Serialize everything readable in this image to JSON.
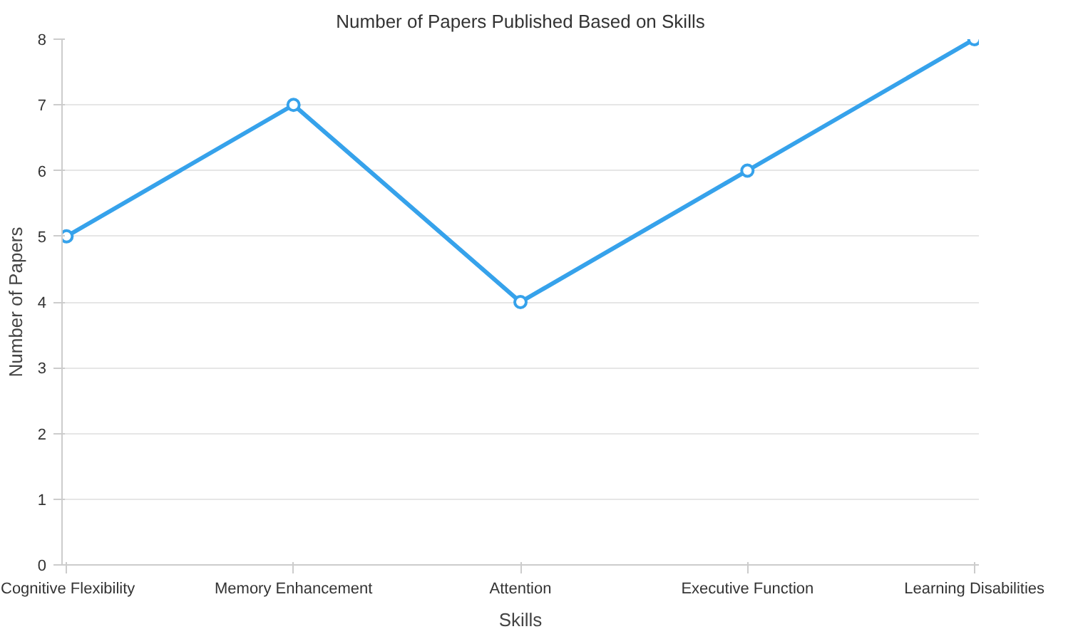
{
  "chart_data": {
    "type": "line",
    "title": "Number of Papers Published Based on Skills",
    "xlabel": "Skills",
    "ylabel": "Number of Papers",
    "categories": [
      "Cognitive Flexibility",
      "Memory Enhancement",
      "Attention",
      "Executive Function",
      "Learning Disabilities"
    ],
    "series": [
      {
        "color": "#36a2eb",
        "values": [
          5,
          7,
          4,
          6,
          8
        ]
      }
    ],
    "ylim": [
      0,
      8
    ],
    "yticks": [
      0,
      1,
      2,
      3,
      4,
      5,
      6,
      7,
      8
    ],
    "grid": "y",
    "marker": "circle",
    "line_style": "solid"
  }
}
